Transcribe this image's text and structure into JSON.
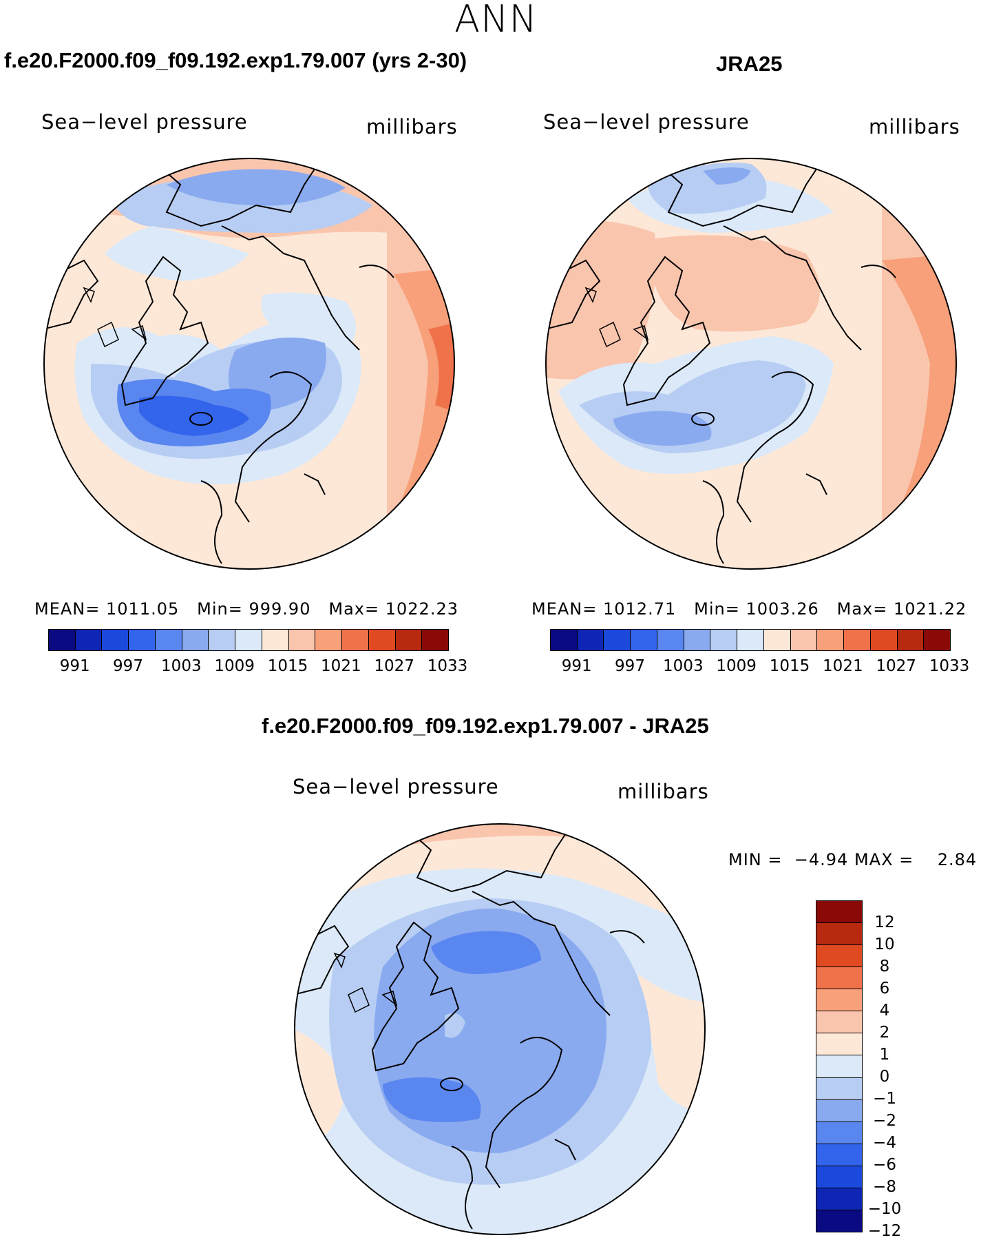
{
  "title": "ANN",
  "panels": {
    "model": {
      "title": "f.e20.F2000.f09_f09.192.exp1.79.007 (yrs 2-30)",
      "variable": "Sea−level pressure",
      "units": "millibars",
      "stats": {
        "mean_label": "MEAN=",
        "mean": "1011.05",
        "min_label": "Min=",
        "min": "999.90",
        "max_label": "Max=",
        "max": "1022.23"
      }
    },
    "obs": {
      "title": "JRA25",
      "variable": "Sea−level pressure",
      "units": "millibars",
      "stats": {
        "mean_label": "MEAN=",
        "mean": "1012.71",
        "min_label": "Min=",
        "min": "1003.26",
        "max_label": "Max=",
        "max": "1021.22"
      }
    },
    "diff": {
      "title": "f.e20.F2000.f09_f09.192.exp1.79.007 - JRA25",
      "variable": "Sea−level pressure",
      "units": "millibars",
      "min_label": "MIN =",
      "min": "−4.94",
      "max_label": "MAX =",
      "max": "2.84"
    }
  },
  "colorbar_abs": {
    "ticks": [
      "991",
      "997",
      "1003",
      "1009",
      "1015",
      "1021",
      "1027",
      "1033"
    ],
    "colors": [
      "#0a0a82",
      "#0f26b4",
      "#1a49dc",
      "#3264ec",
      "#5a86f0",
      "#8aaaf0",
      "#b7cdf3",
      "#dbe9f8",
      "#fde8d8",
      "#fac5ad",
      "#f7a07a",
      "#f0724a",
      "#e04a20",
      "#b82a10",
      "#8a0a08"
    ]
  },
  "colorbar_diff": {
    "ticks": [
      "12",
      "10",
      "8",
      "6",
      "4",
      "2",
      "1",
      "0",
      "−1",
      "−2",
      "−4",
      "−6",
      "−8",
      "−10",
      "−12"
    ],
    "colors": [
      "#8a0a08",
      "#b82a10",
      "#e04a20",
      "#f0724a",
      "#f7a07a",
      "#fac5ad",
      "#fde8d8",
      "#dbe9f8",
      "#b7cdf3",
      "#8aaaf0",
      "#5a86f0",
      "#3264ec",
      "#1a49dc",
      "#0f26b4",
      "#0a0a82"
    ]
  }
}
